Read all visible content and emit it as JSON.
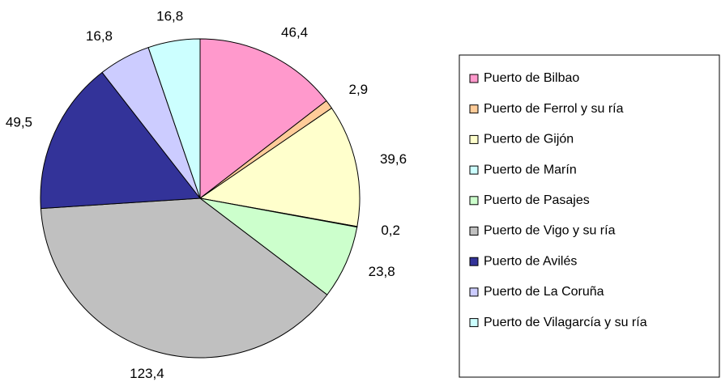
{
  "chart_data": {
    "type": "pie",
    "categories": [
      "Puerto de Bilbao",
      "Puerto de Ferrol y su ría",
      "Puerto de Gijón",
      "Puerto de Marín",
      "Puerto de Pasajes",
      "Puerto de Vigo y su ría",
      "Puerto de Avilés",
      "Puerto de La Coruña",
      "Puerto de Vilagarcía y su ría"
    ],
    "values": [
      46.4,
      2.9,
      39.6,
      0.2,
      23.8,
      123.4,
      49.5,
      16.8,
      16.8
    ],
    "value_labels": [
      "46,4",
      "2,9",
      "39,6",
      "0,2",
      "23,8",
      "123,4",
      "49,5",
      "16,8",
      "16,8"
    ],
    "colors": [
      "#ff99cc",
      "#ffcc99",
      "#ffffcc",
      "#ccffff",
      "#ccffcc",
      "#c0c0c0",
      "#333399",
      "#ccccff",
      "#ccffff"
    ],
    "legend": "right"
  }
}
